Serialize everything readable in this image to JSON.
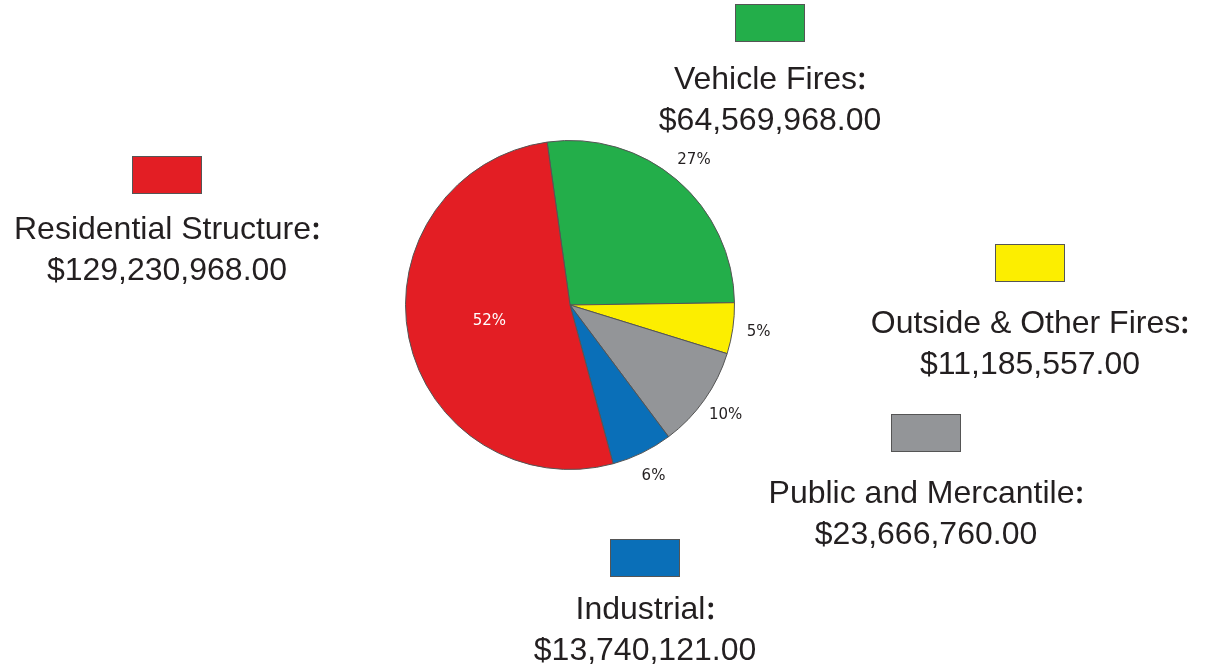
{
  "chart_data": {
    "type": "pie",
    "categories": [
      "Vehicle Fires",
      "Outside & Other Fires",
      "Public and Mercantile",
      "Industrial",
      "Residential Structure"
    ],
    "values": [
      27,
      5,
      10,
      6,
      52
    ],
    "value_labels": [
      "27%",
      "5%",
      "10%",
      "6%",
      "52%"
    ],
    "legend": "right",
    "colors": [
      "#23ae4a",
      "#fcee00",
      "#939598",
      "#0a6fb8",
      "#e31e24"
    ],
    "annotations": [
      {
        "text": "$64,569,968.00",
        "x": "Vehicle Fires"
      },
      {
        "text": "$11,185,557.00",
        "x": "Outside & Other Fires"
      },
      {
        "text": "$23,666,760.00",
        "x": "Public and Mercantile"
      },
      {
        "text": "$13,740,121.00",
        "x": "Industrial"
      },
      {
        "text": "$129,230,968.00",
        "x": "Residential Structure"
      }
    ]
  }
}
